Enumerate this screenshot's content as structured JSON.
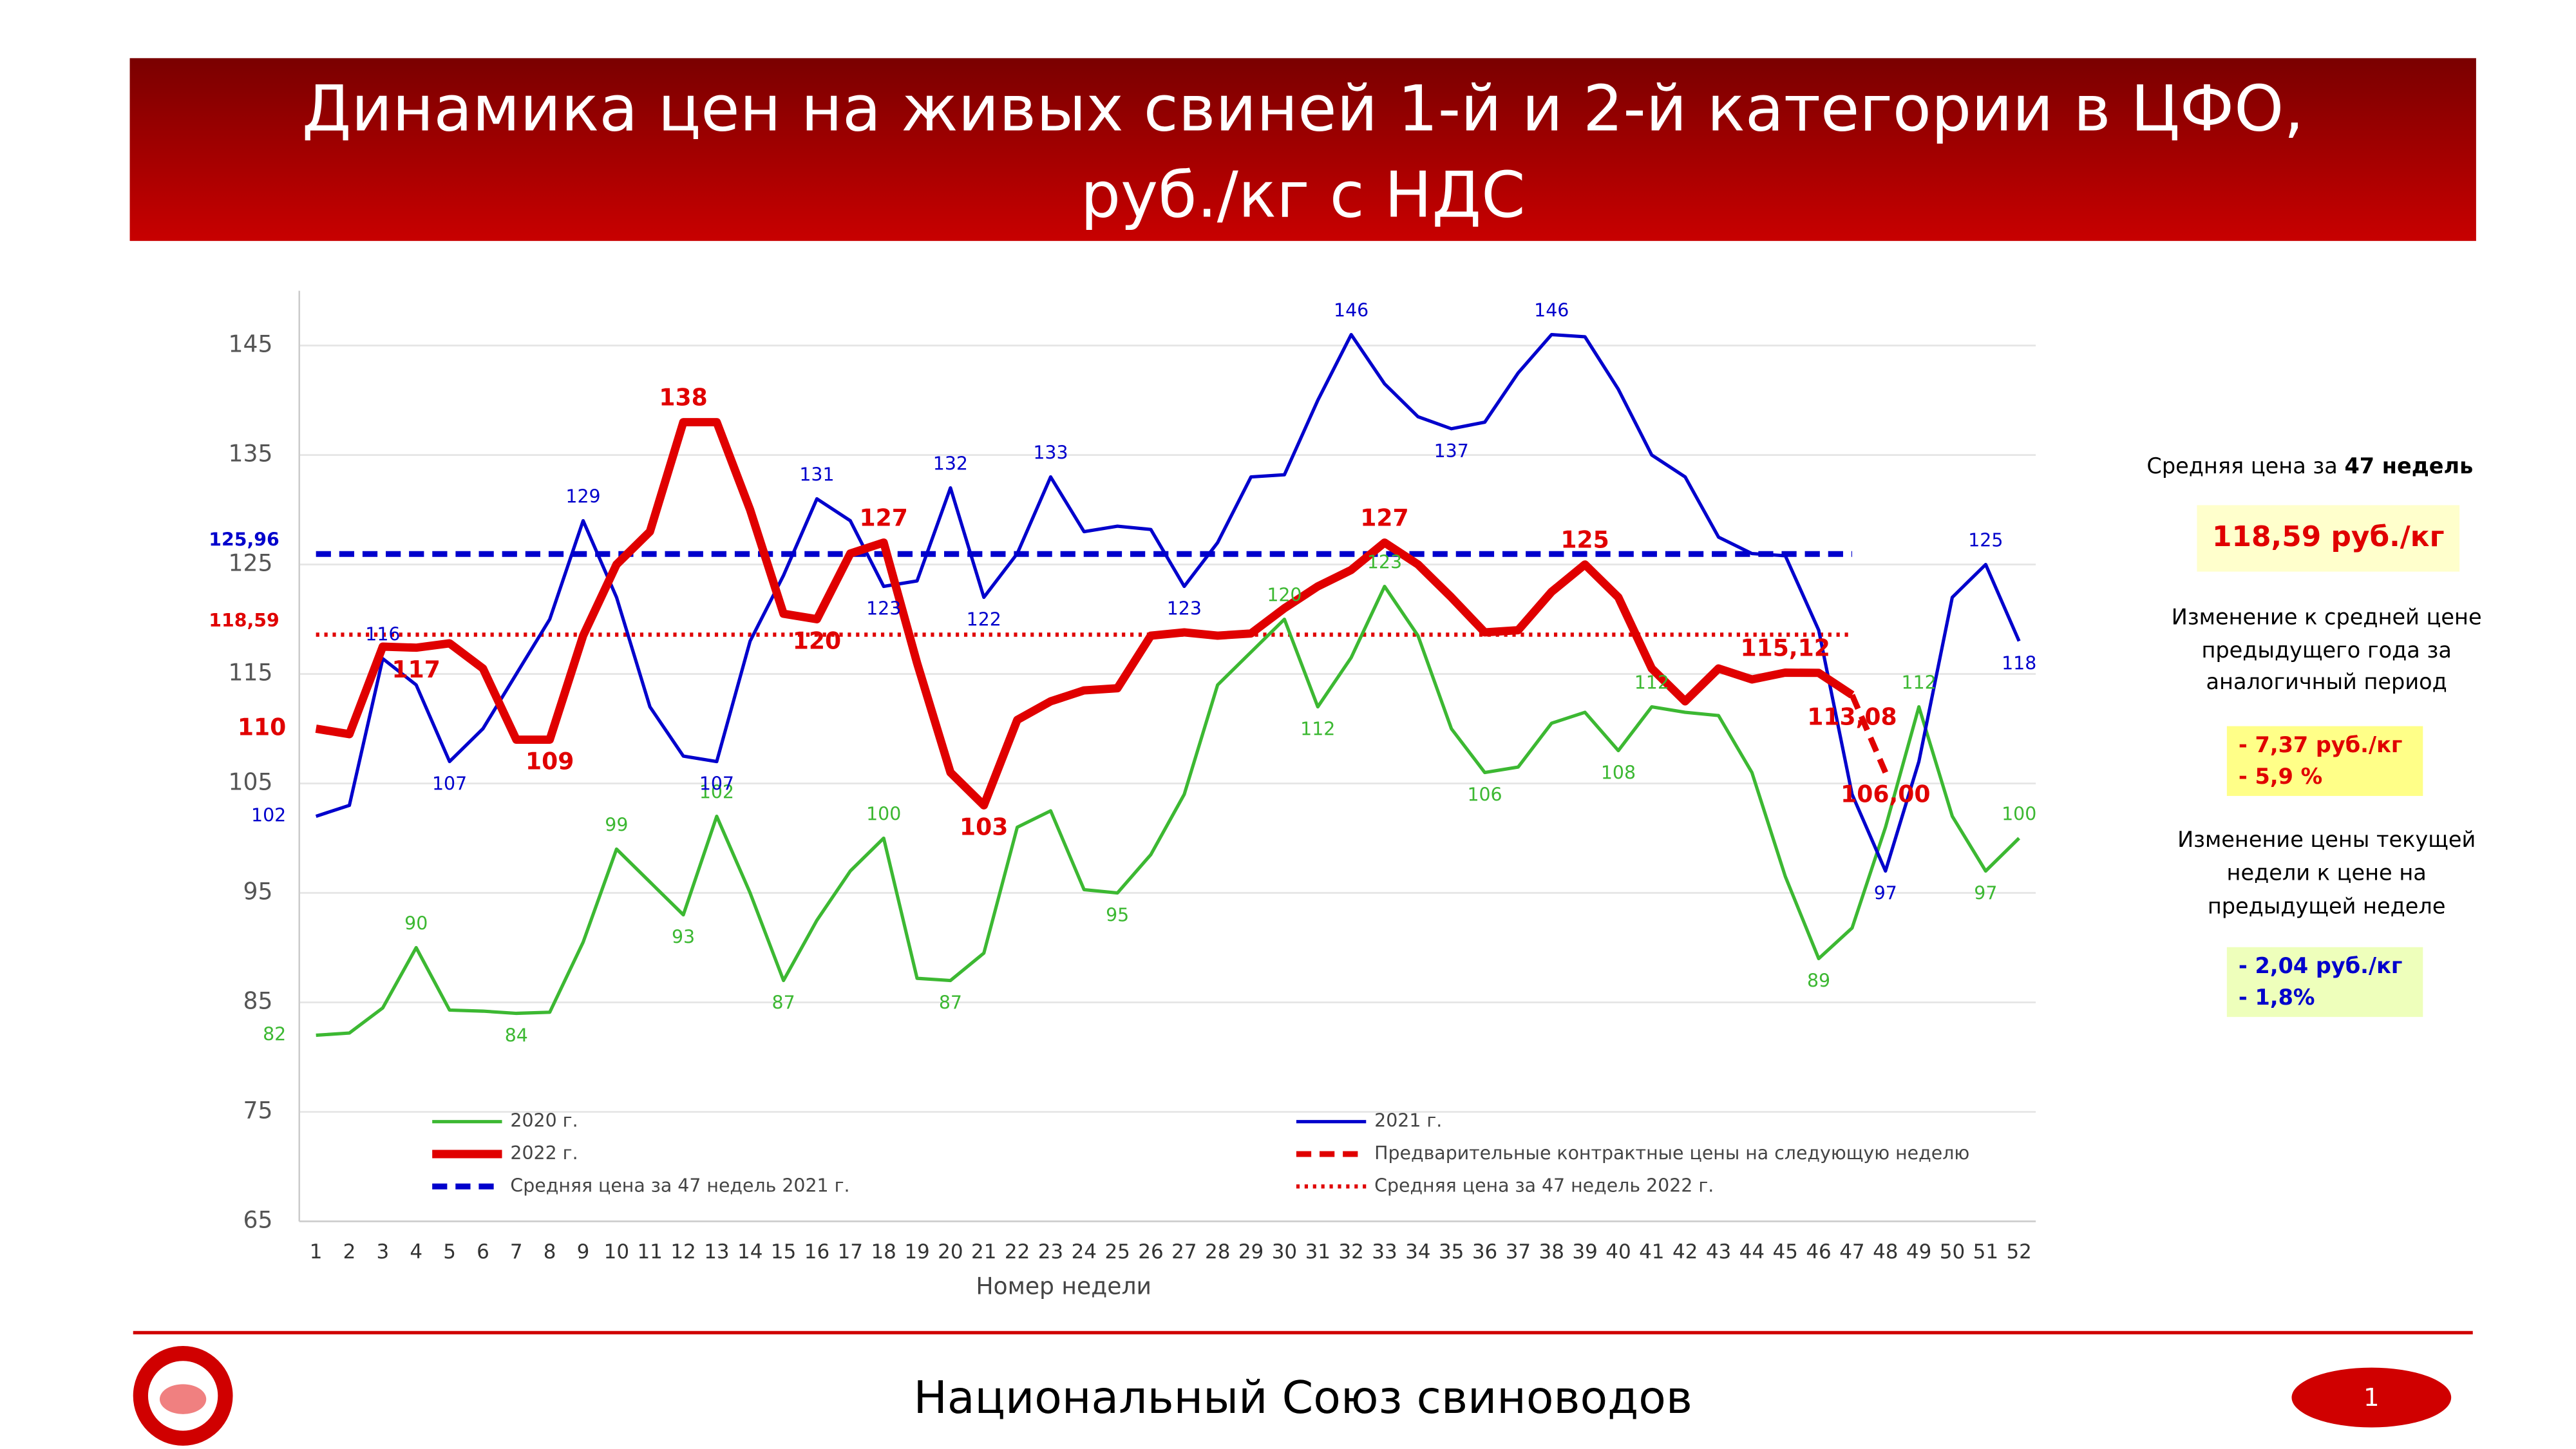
{
  "header": {
    "title_lines": [
      "Динамика цен на живых свиней 1-й и 2-й категории в ЦФО,",
      "руб./кг с НДС"
    ]
  },
  "chart_data": {
    "type": "line",
    "x_label": "Номер недели",
    "x": [
      1,
      2,
      3,
      4,
      5,
      6,
      7,
      8,
      9,
      10,
      11,
      12,
      13,
      14,
      15,
      16,
      17,
      18,
      19,
      20,
      21,
      22,
      23,
      24,
      25,
      26,
      27,
      28,
      29,
      30,
      31,
      32,
      33,
      34,
      35,
      36,
      37,
      38,
      39,
      40,
      41,
      42,
      43,
      44,
      45,
      46,
      47,
      48,
      49,
      50,
      51,
      52
    ],
    "xlim": [
      0.5,
      52.5
    ],
    "xticks": [
      1,
      2,
      3,
      4,
      5,
      6,
      7,
      8,
      9,
      10,
      11,
      12,
      13,
      14,
      15,
      16,
      17,
      18,
      19,
      20,
      21,
      22,
      23,
      24,
      25,
      26,
      27,
      28,
      29,
      30,
      31,
      32,
      33,
      34,
      35,
      36,
      37,
      38,
      39,
      40,
      41,
      42,
      43,
      44,
      45,
      46,
      47,
      48,
      49,
      50,
      51,
      52
    ],
    "ylim": [
      65,
      150
    ],
    "yticks": [
      65,
      75,
      85,
      95,
      105,
      115,
      125,
      135,
      145
    ],
    "grid": true,
    "series": [
      {
        "name": "2020 г.",
        "color": "#3cb832",
        "style": "solid",
        "values": [
          82,
          82.2,
          84.5,
          90,
          84.3,
          84.2,
          84,
          84.1,
          90.5,
          99,
          96,
          93,
          102,
          95,
          87,
          92.5,
          97,
          100,
          87.2,
          87,
          89.5,
          101,
          102.5,
          95.3,
          95,
          98.5,
          104,
          114,
          117,
          120,
          112,
          116.5,
          123,
          118.5,
          110,
          106,
          106.5,
          110.5,
          111.5,
          108,
          112,
          111.5,
          111.2,
          106,
          96.5,
          89,
          91.8,
          101,
          112,
          102,
          97,
          100
        ],
        "value_labels": [
          "82",
          null,
          null,
          "90",
          null,
          null,
          "84",
          null,
          null,
          "99",
          null,
          "93",
          "102",
          null,
          "87",
          null,
          null,
          "100",
          null,
          "87",
          null,
          null,
          null,
          null,
          "95",
          null,
          null,
          null,
          null,
          "120",
          "112",
          null,
          "123",
          null,
          null,
          "106",
          null,
          null,
          null,
          "108",
          "112",
          null,
          null,
          null,
          null,
          "89",
          null,
          null,
          "112",
          null,
          "97",
          "100"
        ]
      },
      {
        "name": "2021 г.",
        "color": "#0000cc",
        "style": "solid",
        "values": [
          102,
          103,
          116.4,
          114,
          107,
          110,
          115,
          120,
          129,
          122,
          112,
          107.5,
          107,
          118,
          124,
          131,
          129,
          123,
          123.5,
          132,
          122,
          126,
          133,
          128,
          128.5,
          128.2,
          123,
          127,
          133,
          133.2,
          140,
          146,
          141.5,
          138.5,
          137.4,
          138,
          142.5,
          146,
          145.8,
          141,
          135,
          133,
          127.5,
          126,
          125.8,
          119,
          104,
          97,
          107,
          122,
          125,
          118
        ],
        "value_labels": [
          "102",
          null,
          "116",
          null,
          "107",
          null,
          null,
          null,
          "129",
          null,
          null,
          null,
          "107",
          null,
          null,
          "131",
          null,
          "123",
          null,
          "132",
          "122",
          null,
          "133",
          null,
          null,
          null,
          "123",
          null,
          null,
          null,
          null,
          "146",
          null,
          null,
          "137",
          null,
          null,
          "146",
          null,
          null,
          null,
          null,
          null,
          null,
          null,
          null,
          null,
          "97",
          null,
          null,
          "125",
          "118"
        ]
      },
      {
        "name": "2022 г.",
        "color": "#e00000",
        "style": "thick",
        "values": [
          110,
          109.5,
          117.5,
          117.4,
          117.8,
          115.5,
          109,
          109,
          118.5,
          125,
          128,
          138,
          138,
          130,
          120.5,
          120,
          126,
          127,
          116,
          106,
          103,
          110.8,
          112.5,
          113.5,
          113.7,
          118.5,
          118.8,
          118.5,
          118.7,
          121,
          123,
          124.5,
          127,
          125,
          122,
          118.8,
          119,
          122.5,
          125,
          122,
          115.5,
          112.5,
          115.5,
          114.5,
          115.12,
          115.1,
          113.08,
          null,
          null,
          null,
          null,
          null
        ],
        "value_labels": [
          "110",
          null,
          null,
          "117",
          null,
          null,
          null,
          "109",
          null,
          null,
          null,
          "138",
          null,
          null,
          null,
          "120",
          null,
          "127",
          null,
          null,
          "103",
          null,
          null,
          null,
          null,
          null,
          null,
          null,
          null,
          null,
          null,
          null,
          "127",
          null,
          null,
          null,
          null,
          null,
          "125",
          null,
          null,
          null,
          null,
          null,
          "115,12",
          null,
          "113,08",
          null,
          null,
          null,
          null,
          null
        ]
      },
      {
        "name": "Предварительные контрактные цены на следующую неделю",
        "color": "#e00000",
        "style": "dashed",
        "values": [
          null,
          null,
          null,
          null,
          null,
          null,
          null,
          null,
          null,
          null,
          null,
          null,
          null,
          null,
          null,
          null,
          null,
          null,
          null,
          null,
          null,
          null,
          null,
          null,
          null,
          null,
          null,
          null,
          null,
          null,
          null,
          null,
          null,
          null,
          null,
          null,
          null,
          null,
          null,
          null,
          null,
          null,
          null,
          null,
          null,
          null,
          113.08,
          106,
          null,
          null,
          null,
          null
        ],
        "value_labels": [
          null,
          null,
          null,
          null,
          null,
          null,
          null,
          null,
          null,
          null,
          null,
          null,
          null,
          null,
          null,
          null,
          null,
          null,
          null,
          null,
          null,
          null,
          null,
          null,
          null,
          null,
          null,
          null,
          null,
          null,
          null,
          null,
          null,
          null,
          null,
          null,
          null,
          null,
          null,
          null,
          null,
          null,
          null,
          null,
          null,
          null,
          null,
          "106,00",
          null,
          null,
          null,
          null
        ]
      }
    ],
    "reference_lines": [
      {
        "name": "Средняя цена за 47 недель 2021 г.",
        "color": "#0000cc",
        "style": "dashed",
        "value": 125.96,
        "value_label": "125,96",
        "x_range": [
          1,
          47
        ]
      },
      {
        "name": "Средняя цена за 47 недель 2022 г.",
        "color": "#e00000",
        "style": "dotted",
        "value": 118.59,
        "value_label": "118,59",
        "x_range": [
          1,
          47
        ]
      }
    ]
  },
  "panel": {
    "avg_title": "Средняя цена за ",
    "avg_title_bold": "47 недель",
    "avg_value": "118,59 руб./кг",
    "change_year_lines": [
      "Изменение к средней цене",
      "предыдущего года за",
      "аналогичный период"
    ],
    "change_year_values": [
      "- 7,37 руб./кг",
      "- 5,9 %"
    ],
    "change_week_lines": [
      "Изменение цены текущей",
      "недели к цене на",
      "предыдущей неделе"
    ],
    "change_week_values": [
      "- 2,04 руб./кг",
      "- 1,8%"
    ]
  },
  "footer": {
    "text": "Национальный Союз свиноводов",
    "page": "1"
  }
}
